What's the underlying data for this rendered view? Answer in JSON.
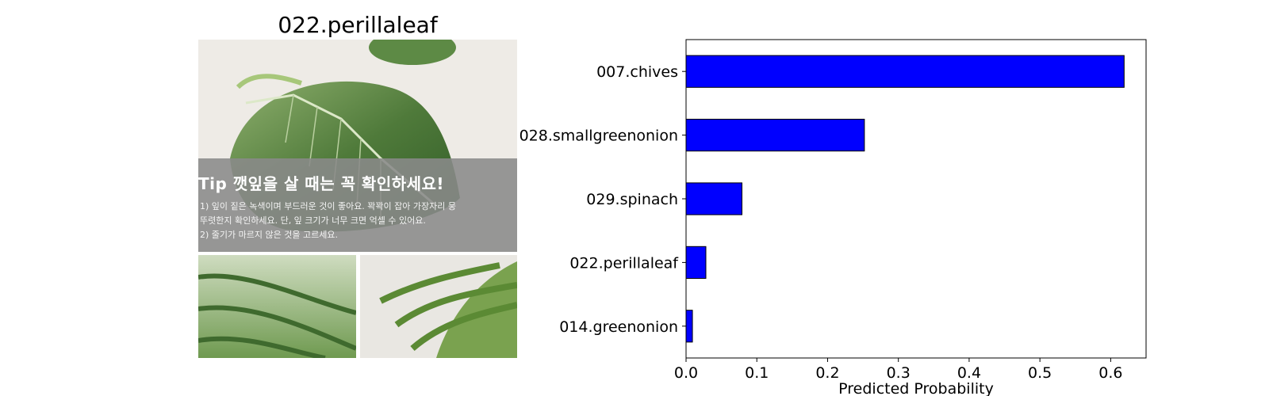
{
  "image_panel": {
    "title": "022.perillaleaf",
    "overlay_tip_title": "Tip 깻잎을 살 때는 꼭 확인하세요!",
    "overlay_lines": [
      "1) 잎이 짙은 녹색이며 부드러운 것이 좋아요. 꽉꽉이 잡아 가장자리 뭉",
      "   뚜렷한지 확인하세요. 단, 잎 크기가 너무 크면 억셀 수 있어요.",
      "2) 줄기가 마르지 않은 것을 고르세요."
    ]
  },
  "chart_data": {
    "type": "bar",
    "orientation": "horizontal",
    "categories": [
      "007.chives",
      "028.smallgreenonion",
      "029.spinach",
      "022.perillaleaf",
      "014.greenonion"
    ],
    "values": [
      0.619,
      0.252,
      0.079,
      0.028,
      0.009
    ],
    "xlabel": "Predicted Probability",
    "ylabel": "",
    "xlim": [
      0,
      0.65
    ],
    "xticks": [
      "0.0",
      "0.1",
      "0.2",
      "0.3",
      "0.4",
      "0.5",
      "0.6"
    ],
    "grid": false,
    "bar_color": "#0000ff",
    "edge_color": "#000000"
  }
}
